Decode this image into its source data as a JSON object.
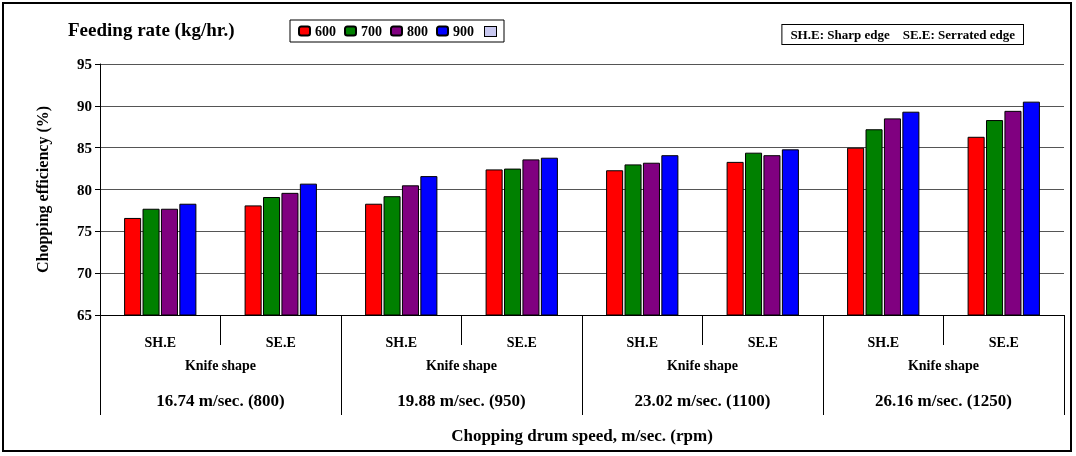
{
  "chart_data": {
    "type": "bar",
    "legend_title": "Feeding rate (kg/hr.)",
    "ylabel": "Chopping efficiency (%)",
    "xlabel": "Chopping drum speed, m/sec. (rpm)",
    "categories": [
      "SH.E",
      "SE.E",
      "SH.E",
      "SE.E",
      "SH.E",
      "SE.E",
      "SH.E",
      "SE.E"
    ],
    "annotations": [
      "SH.E: Sharp edge    SE.E: Serrated edge",
      "Knife shape",
      "Knife shape",
      "Knife shape",
      "Knife shape",
      "16.74 m/sec. (800)",
      "19.88 m/sec. (950)",
      "23.02 m/sec. (1100)",
      "26.16 m/sec. (1250)"
    ],
    "series": [
      {
        "name": "600",
        "color": "#ff0000",
        "values": [
          76.6,
          78.1,
          78.3,
          82.4,
          82.3,
          83.3,
          85.0,
          86.3
        ]
      },
      {
        "name": "700",
        "color": "#008000",
        "values": [
          77.7,
          79.1,
          79.2,
          82.5,
          83.0,
          84.4,
          87.2,
          88.3
        ]
      },
      {
        "name": "800",
        "color": "#800080",
        "values": [
          77.7,
          79.6,
          80.5,
          83.6,
          83.2,
          84.1,
          88.5,
          89.4
        ]
      },
      {
        "name": "900",
        "color": "#0000ff",
        "values": [
          78.3,
          80.7,
          81.6,
          83.8,
          84.1,
          84.8,
          89.3,
          90.5
        ]
      }
    ],
    "ylim": [
      65,
      95
    ],
    "yticks": [
      65,
      70,
      75,
      80,
      85,
      90,
      95
    ],
    "grid": "y",
    "legend": "top"
  }
}
